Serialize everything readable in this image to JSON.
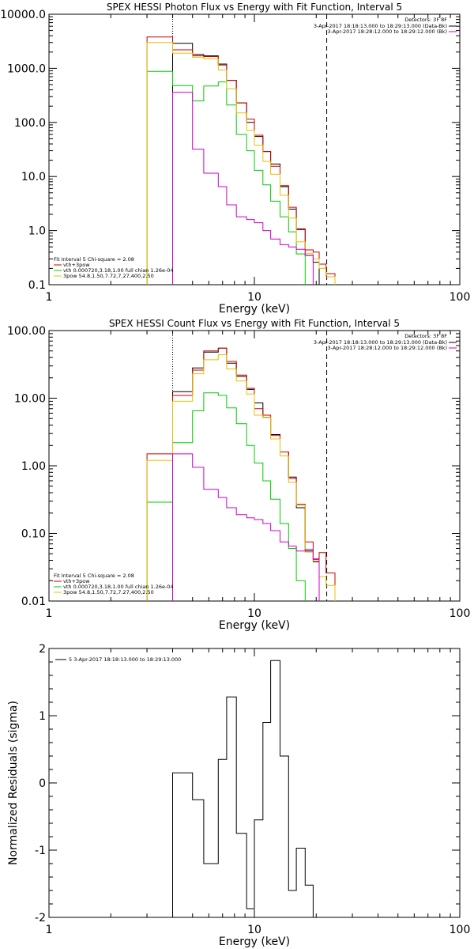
{
  "chart_data": [
    {
      "type": "line",
      "title": "SPEX HESSI Photon Flux vs Energy with Fit Function, Interval 5",
      "xlabel": "Energy (keV)",
      "ylabel": "",
      "xscale": "log",
      "yscale": "log",
      "xlim": [
        1,
        100
      ],
      "ylim": [
        0.1,
        10000
      ],
      "x_ticks": [
        1,
        10,
        100
      ],
      "x_tick_labels": [
        "1",
        "10",
        "100"
      ],
      "y_ticks": [
        0.1,
        1,
        10,
        100,
        1000,
        10000
      ],
      "y_tick_labels": [
        "0.1",
        "1.0",
        "10.0",
        "100.0",
        "1000.0",
        "10000.0"
      ],
      "vlines": [
        {
          "x": 4,
          "style": "dotted"
        },
        {
          "x": 22.5,
          "style": "dashed"
        }
      ],
      "legend_top": {
        "header": "Detectors: 3F 8F",
        "entries": [
          {
            "text": "3-Apr-2017 18:18:13.000 to 18:29:13.000 (Data-Bk)",
            "color": "#000000"
          },
          {
            "text": "3-Apr-2017 18:28:12.000 to 18:29:12.000 (Bk)",
            "color": "#cc00cc"
          }
        ]
      },
      "legend_bottom": {
        "header": "Fit Interval 5  Chi-square = 2.08",
        "entries": [
          {
            "text": "vth+3pow",
            "color": "#cc0000"
          },
          {
            "text": "vth 0.000720,3.18,1.00  full chian 1.26e-04",
            "color": "#00cc00"
          },
          {
            "text": "3pow 54.8,1.50,7.72,7.27,400,2.50",
            "color": "#e8c000"
          }
        ]
      },
      "bin_edges": [
        3,
        4,
        5,
        5.67,
        6.67,
        7.33,
        8.17,
        9.17,
        10,
        11,
        12,
        13.33,
        14.67,
        16,
        17.67,
        19.33,
        20.67,
        22.33,
        24.67,
        27.33,
        30
      ],
      "series": [
        {
          "name": "Data-Bk",
          "color": "#000000",
          "values": [
            null,
            2900,
            1800,
            1700,
            1200,
            600,
            230,
            100,
            55,
            29,
            17,
            6.5,
            2.5,
            1.05,
            0.35,
            0.26,
            null,
            null,
            null,
            null
          ]
        },
        {
          "name": "vth+3pow",
          "color": "#cc0000",
          "values": [
            3800,
            2200,
            1700,
            1650,
            1150,
            600,
            230,
            115,
            58,
            29,
            15.5,
            6.8,
            2.7,
            1.08,
            0.44,
            0.4,
            0.24,
            0.16,
            null,
            null
          ]
        },
        {
          "name": "vth",
          "color": "#00cc00",
          "values": [
            880,
            480,
            250,
            470,
            560,
            210,
            60,
            30,
            13,
            7,
            3.5,
            1.8,
            0.95,
            0.37,
            null,
            null,
            null,
            null,
            null,
            null
          ]
        },
        {
          "name": "3pow",
          "color": "#e8c000",
          "values": [
            3000,
            1900,
            1600,
            1500,
            930,
            420,
            150,
            71,
            38,
            19,
            11,
            4.5,
            1.7,
            0.62,
            0.38,
            0.3,
            0.2,
            0.14,
            null,
            null
          ]
        },
        {
          "name": "Bk",
          "color": "#cc00cc",
          "values": [
            null,
            360,
            32,
            11.5,
            6.5,
            3,
            1.8,
            1.6,
            1.4,
            1.0,
            0.7,
            0.55,
            0.5,
            0.45,
            0.35,
            null,
            null,
            null,
            null,
            null
          ]
        }
      ]
    },
    {
      "type": "line",
      "title": "SPEX HESSI Count Flux vs Energy with Fit Function, Interval 5",
      "xlabel": "Energy (keV)",
      "ylabel": "",
      "xscale": "log",
      "yscale": "log",
      "xlim": [
        1,
        100
      ],
      "ylim": [
        0.01,
        100
      ],
      "x_ticks": [
        1,
        10,
        100
      ],
      "x_tick_labels": [
        "1",
        "10",
        "100"
      ],
      "y_ticks": [
        0.01,
        0.1,
        1,
        10,
        100
      ],
      "y_tick_labels": [
        "0.01",
        "0.10",
        "1.00",
        "10.00",
        "100.00"
      ],
      "vlines": [
        {
          "x": 4,
          "style": "dotted"
        },
        {
          "x": 22.5,
          "style": "dashed"
        }
      ],
      "legend_top": {
        "header": "Detectors: 3F 8F",
        "entries": [
          {
            "text": "3-Apr-2017 18:18:13.000 to 18:29:13.000 (Data-Bk)",
            "color": "#000000"
          },
          {
            "text": "3-Apr-2017 18:28:12.000 to 18:29:12.000 (Bk)",
            "color": "#cc00cc"
          }
        ]
      },
      "legend_bottom": {
        "header": "Fit Interval 5  Chi-square = 2.08",
        "entries": [
          {
            "text": "vth+3pow",
            "color": "#cc0000"
          },
          {
            "text": "vth 0.000720,3.18,1.00  full chian 1.26e-04",
            "color": "#00cc00"
          },
          {
            "text": "3pow 54.8,1.50,7.72,7.27,400,2.50",
            "color": "#e8c000"
          }
        ]
      },
      "bin_edges": [
        3,
        4,
        5,
        5.67,
        6.67,
        7.33,
        8.17,
        9.17,
        10,
        11,
        12,
        13.33,
        14.67,
        16,
        17.67,
        19.33,
        20.67,
        22.33,
        24.67,
        27.33,
        30
      ],
      "series": [
        {
          "name": "Data-Bk",
          "color": "#000000",
          "values": [
            null,
            12.5,
            28,
            48,
            55,
            33,
            21,
            13.5,
            8.5,
            5.2,
            2.9,
            1.6,
            0.68,
            0.24,
            0.055,
            0.038,
            null,
            null,
            null,
            null
          ]
        },
        {
          "name": "vth+3pow",
          "color": "#cc0000",
          "values": [
            1.5,
            11,
            26,
            50,
            55,
            35,
            22,
            14,
            7,
            5.6,
            2.8,
            1.6,
            0.65,
            0.27,
            0.075,
            0.042,
            0.052,
            0.026,
            null,
            null
          ]
        },
        {
          "name": "vth",
          "color": "#00cc00",
          "values": [
            0.29,
            2.2,
            6.5,
            12,
            11,
            7.2,
            4.2,
            2.0,
            1.1,
            0.6,
            0.32,
            0.14,
            0.06,
            0.02,
            null,
            null,
            null,
            null,
            null,
            null
          ]
        },
        {
          "name": "3pow",
          "color": "#e8c000",
          "values": [
            1.2,
            9,
            23,
            37,
            44,
            27,
            18,
            11.5,
            5.6,
            5.2,
            2.5,
            1.4,
            0.57,
            0.26,
            0.053,
            0.039,
            0.023,
            0.017,
            null,
            null
          ]
        },
        {
          "name": "Bk",
          "color": "#cc00cc",
          "values": [
            null,
            1.5,
            0.95,
            0.45,
            0.34,
            0.24,
            0.19,
            0.17,
            0.16,
            0.14,
            0.11,
            0.075,
            0.065,
            0.055,
            0.058,
            0.041,
            null,
            null,
            null,
            null
          ]
        }
      ]
    },
    {
      "type": "line",
      "title": "",
      "xlabel": "Energy (keV)",
      "ylabel": "Normalized Residuals (sigma)",
      "xscale": "log",
      "yscale": "linear",
      "xlim": [
        1,
        100
      ],
      "ylim": [
        -2,
        2
      ],
      "x_ticks": [
        1,
        10,
        100
      ],
      "x_tick_labels": [
        "1",
        "10",
        "100"
      ],
      "y_ticks": [
        -2,
        -1,
        0,
        1,
        2
      ],
      "y_tick_labels": [
        "-2",
        "-1",
        "0",
        "1",
        "2"
      ],
      "legend": {
        "entries": [
          {
            "text": "5  3-Apr-2017 18:18:13.000 to 18:29:13.000",
            "color": "#000000"
          }
        ]
      },
      "bin_edges": [
        4,
        5,
        5.67,
        6.67,
        7.33,
        8.17,
        9.17,
        10,
        11,
        12,
        13.33,
        14.67,
        16,
        17.67,
        19.33,
        20.67,
        22.33
      ],
      "series": [
        {
          "name": "5",
          "color": "#000000",
          "values": [
            0.15,
            -0.25,
            -1.2,
            0.35,
            1.28,
            -0.75,
            -1.87,
            -0.55,
            0.9,
            1.82,
            0.4,
            -1.6,
            -0.97,
            -1.52,
            -2.0,
            -2.0
          ]
        }
      ]
    }
  ]
}
